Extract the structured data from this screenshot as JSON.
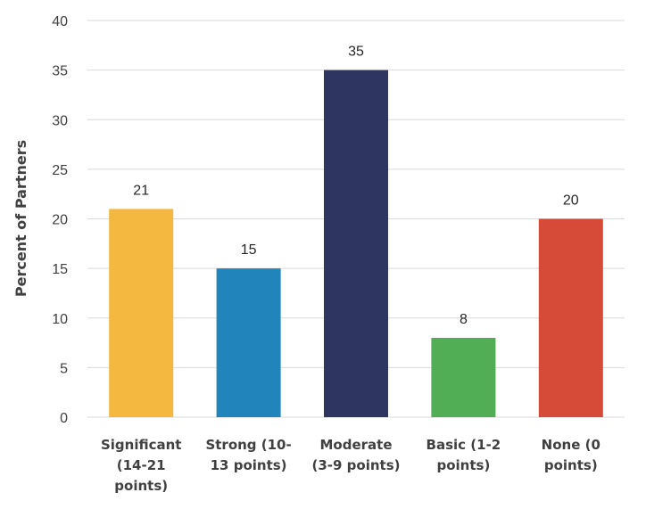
{
  "chart_data": {
    "type": "bar",
    "title": "",
    "xlabel": "",
    "ylabel": "Percent of Partners",
    "ylim": [
      0,
      40
    ],
    "yticks": [
      0,
      5,
      10,
      15,
      20,
      25,
      30,
      35,
      40
    ],
    "grid": true,
    "legend": "none",
    "categories": [
      [
        "Significant",
        "(14-21",
        "points)"
      ],
      [
        "Strong (10-",
        "13 points)"
      ],
      [
        "Moderate",
        "(3-9 points)"
      ],
      [
        "Basic (1-2",
        "points)"
      ],
      [
        "None (0",
        "points)"
      ]
    ],
    "values": [
      21,
      15,
      35,
      8,
      20
    ],
    "data_labels": [
      "21",
      "15",
      "35",
      "8",
      "20"
    ],
    "colors": [
      "#F4B740",
      "#2185BC",
      "#2E3561",
      "#52AE54",
      "#D64B37"
    ]
  }
}
